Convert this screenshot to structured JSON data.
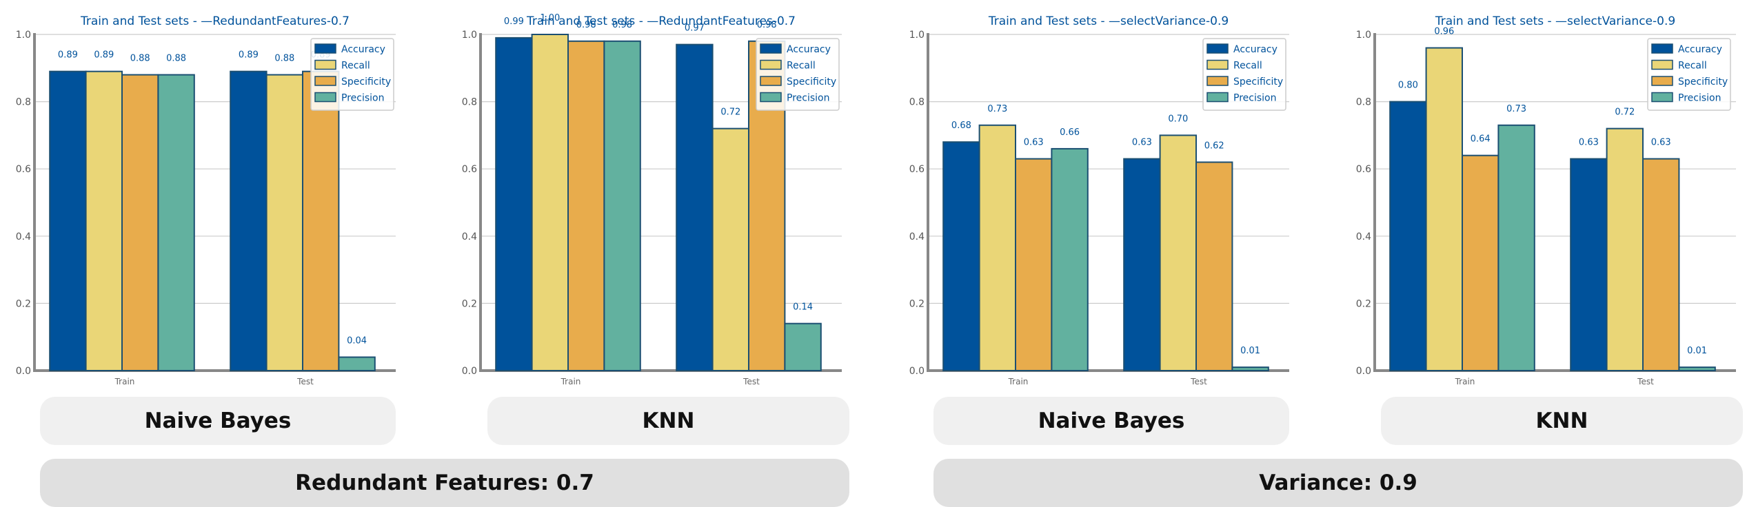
{
  "colors": {
    "accuracy": "#00529b",
    "recall": "#ead677",
    "specificity": "#e8ac4c",
    "precision": "#62b19f",
    "title": "#00529b",
    "edge": "#1b4f72"
  },
  "chart_data": [
    {
      "type": "bar",
      "title": "Train and Test sets - —RedundantFeatures-0.7",
      "categories": [
        "Train",
        "Test"
      ],
      "ylim": [
        0,
        1.0
      ],
      "yticks": [
        "0.0",
        "0.2",
        "0.4",
        "0.6",
        "0.8",
        "1.0"
      ],
      "grid": true,
      "legend_position": "top-right",
      "series": [
        {
          "name": "Accuracy",
          "values": [
            0.89,
            0.89
          ],
          "labels": [
            "0.89",
            "0.89"
          ]
        },
        {
          "name": "Recall",
          "values": [
            0.89,
            0.88
          ],
          "labels": [
            "0.89",
            "0.88"
          ]
        },
        {
          "name": "Specificity",
          "values": [
            0.88,
            0.89
          ],
          "labels": [
            "0.88",
            "0.89"
          ]
        },
        {
          "name": "Precision",
          "values": [
            0.88,
            0.04
          ],
          "labels": [
            "0.88",
            "0.04"
          ]
        }
      ]
    },
    {
      "type": "bar",
      "title": "Train and Test sets - —RedundantFeatures-0.7",
      "categories": [
        "Train",
        "Test"
      ],
      "ylim": [
        0,
        1.0
      ],
      "yticks": [
        "0.0",
        "0.2",
        "0.4",
        "0.6",
        "0.8",
        "1.0"
      ],
      "grid": true,
      "legend_position": "top-right",
      "series": [
        {
          "name": "Accuracy",
          "values": [
            0.99,
            0.97
          ],
          "labels": [
            "0.99",
            "0.97"
          ]
        },
        {
          "name": "Recall",
          "values": [
            1.0,
            0.72
          ],
          "labels": [
            "1.00",
            "0.72"
          ]
        },
        {
          "name": "Specificity",
          "values": [
            0.98,
            0.98
          ],
          "labels": [
            "0.98",
            "0.98"
          ]
        },
        {
          "name": "Precision",
          "values": [
            0.98,
            0.14
          ],
          "labels": [
            "0.98",
            "0.14"
          ]
        }
      ]
    },
    {
      "type": "bar",
      "title": "Train and Test sets - —selectVariance-0.9",
      "categories": [
        "Train",
        "Test"
      ],
      "ylim": [
        0,
        1.0
      ],
      "yticks": [
        "0.0",
        "0.2",
        "0.4",
        "0.6",
        "0.8",
        "1.0"
      ],
      "grid": true,
      "legend_position": "top-right",
      "series": [
        {
          "name": "Accuracy",
          "values": [
            0.68,
            0.63
          ],
          "labels": [
            "0.68",
            "0.63"
          ]
        },
        {
          "name": "Recall",
          "values": [
            0.73,
            0.7
          ],
          "labels": [
            "0.73",
            "0.70"
          ]
        },
        {
          "name": "Specificity",
          "values": [
            0.63,
            0.62
          ],
          "labels": [
            "0.63",
            "0.62"
          ]
        },
        {
          "name": "Precision",
          "values": [
            0.66,
            0.01
          ],
          "labels": [
            "0.66",
            "0.01"
          ]
        }
      ]
    },
    {
      "type": "bar",
      "title": "Train and Test sets - —selectVariance-0.9",
      "categories": [
        "Train",
        "Test"
      ],
      "ylim": [
        0,
        1.0
      ],
      "yticks": [
        "0.0",
        "0.2",
        "0.4",
        "0.6",
        "0.8",
        "1.0"
      ],
      "grid": true,
      "legend_position": "top-right",
      "series": [
        {
          "name": "Accuracy",
          "values": [
            0.8,
            0.63
          ],
          "labels": [
            "0.80",
            "0.63"
          ]
        },
        {
          "name": "Recall",
          "values": [
            0.96,
            0.72
          ],
          "labels": [
            "0.96",
            "0.72"
          ]
        },
        {
          "name": "Specificity",
          "values": [
            0.64,
            0.63
          ],
          "labels": [
            "0.64",
            "0.63"
          ]
        },
        {
          "name": "Precision",
          "values": [
            0.73,
            0.01
          ],
          "labels": [
            "0.73",
            "0.01"
          ]
        }
      ]
    }
  ],
  "model_labels": [
    "Naive Bayes",
    "KNN",
    "Naive Bayes",
    "KNN"
  ],
  "group_labels": [
    "Redundant Features: 0.7",
    "Variance: 0.9"
  ]
}
